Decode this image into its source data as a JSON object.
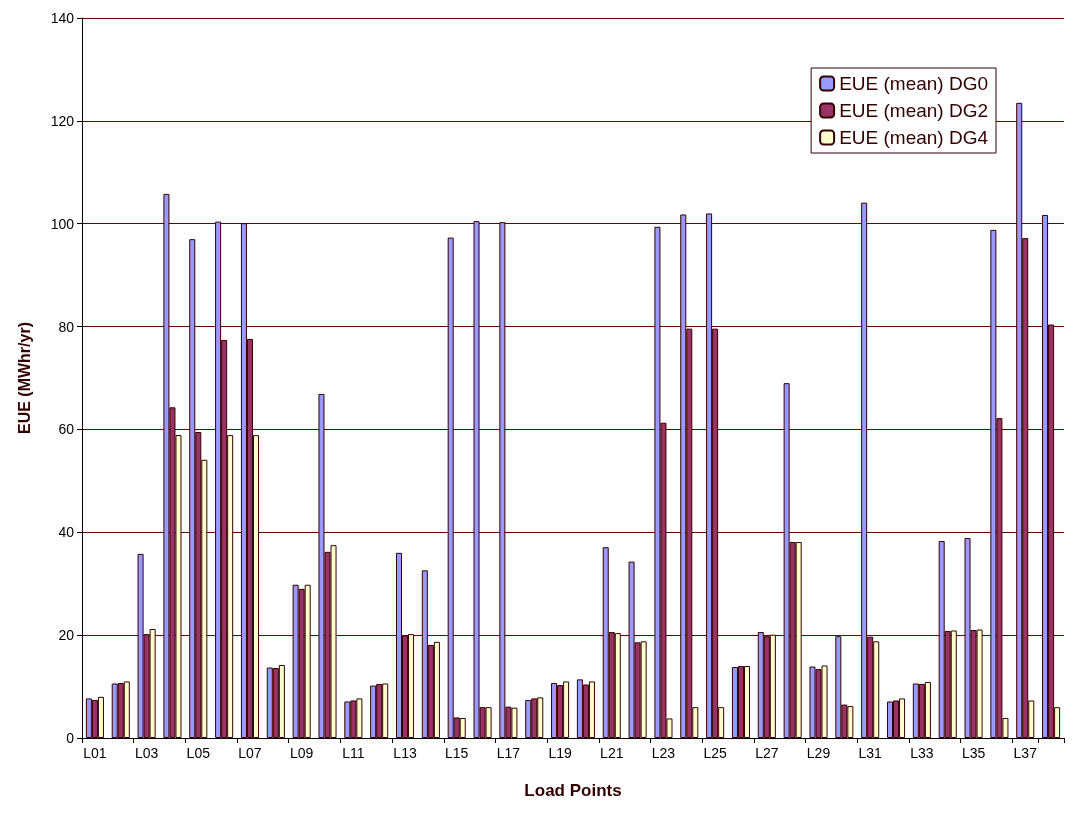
{
  "chart_data": {
    "type": "bar",
    "xlabel": "Load Points",
    "ylabel": "EUE (MWhr/yr)",
    "categories": [
      "L01",
      null,
      "L03",
      null,
      "L05",
      null,
      "L07",
      null,
      "L09",
      null,
      "L11",
      null,
      "L13",
      null,
      "L15",
      null,
      "L17",
      null,
      "L19",
      null,
      "L21",
      null,
      "L23",
      null,
      "L25",
      null,
      "L27",
      null,
      "L29",
      null,
      "L31",
      null,
      "L33",
      null,
      "L35",
      null,
      "L37",
      null
    ],
    "series": [
      {
        "name": "EUE (mean) DG0",
        "color": "#9999ff",
        "values": [
          7.7,
          10.6,
          35.8,
          105.8,
          97.0,
          100.4,
          100.1,
          13.7,
          29.8,
          66.9,
          7.1,
          10.2,
          36.0,
          32.6,
          97.3,
          100.5,
          100.3,
          7.4,
          10.7,
          11.4,
          37.1,
          34.3,
          99.4,
          101.8,
          102.0,
          13.8,
          20.6,
          69.0,
          13.9,
          19.8,
          104.1,
          7.1,
          10.6,
          38.3,
          38.9,
          98.8,
          123.5,
          101.7
        ]
      },
      {
        "name": "EUE (mean) DG2",
        "color": "#993366",
        "values": [
          7.4,
          10.7,
          20.2,
          64.3,
          59.5,
          77.4,
          77.6,
          13.6,
          29.0,
          36.2,
          7.3,
          10.5,
          19.9,
          18.1,
          4.0,
          6.0,
          6.1,
          7.7,
          10.3,
          10.4,
          20.6,
          18.6,
          61.3,
          79.6,
          79.6,
          14.0,
          19.8,
          38.1,
          13.4,
          6.5,
          19.7,
          7.3,
          10.5,
          20.8,
          21.0,
          62.2,
          97.2,
          80.4
        ]
      },
      {
        "name": "EUE (mean) DG4",
        "color": "#ffffcc",
        "values": [
          8.0,
          11.0,
          21.2,
          58.9,
          54.1,
          58.9,
          58.9,
          14.2,
          29.8,
          37.5,
          7.7,
          10.6,
          20.2,
          18.7,
          3.9,
          6.0,
          5.9,
          7.9,
          11.0,
          11.0,
          20.4,
          18.8,
          3.8,
          6.0,
          6.0,
          14.0,
          20.1,
          38.1,
          14.1,
          6.2,
          18.8,
          7.7,
          10.9,
          20.9,
          21.1,
          3.9,
          7.3,
          6.0
        ]
      }
    ],
    "ylim": [
      0,
      140
    ],
    "yticks": [
      0,
      20,
      40,
      60,
      80,
      100,
      120,
      140
    ],
    "grid": "y",
    "legend": "top right"
  }
}
